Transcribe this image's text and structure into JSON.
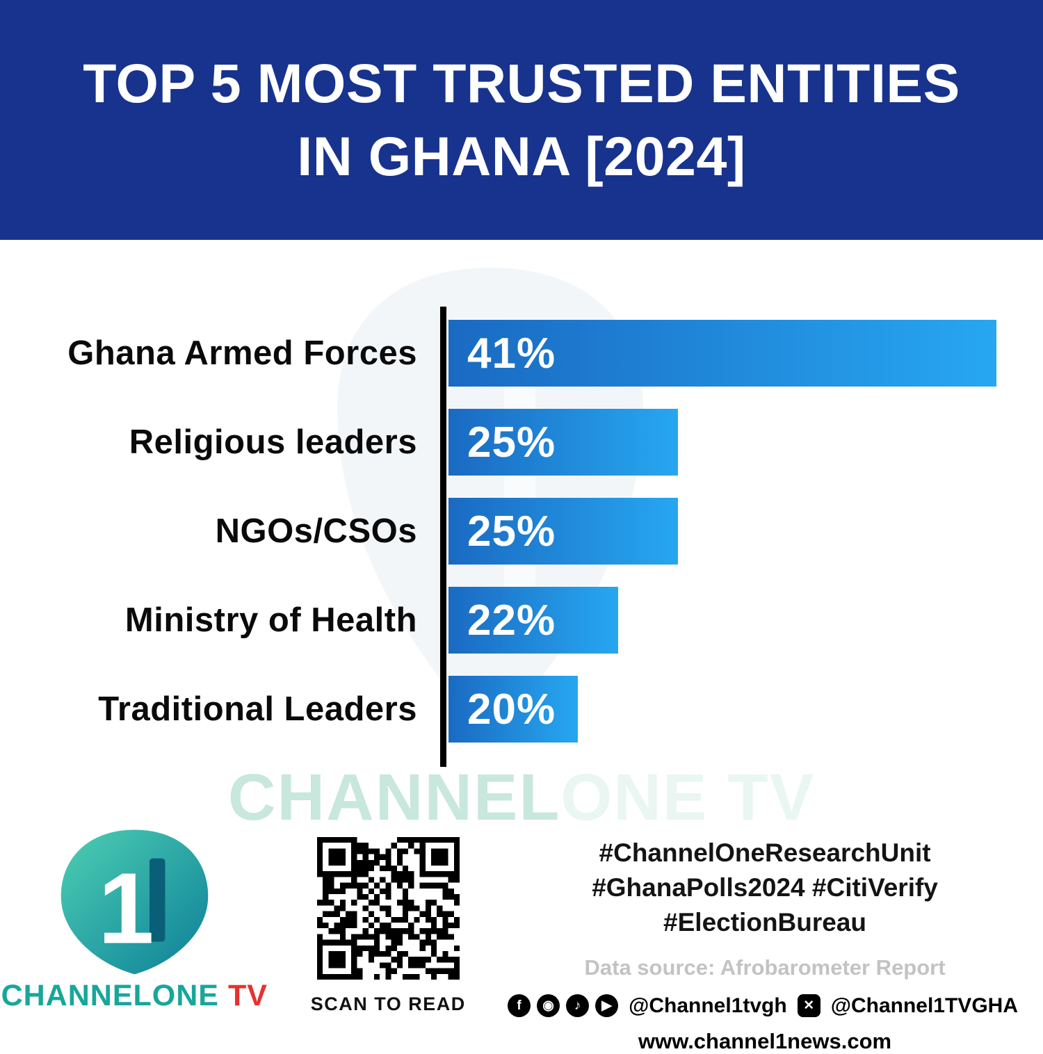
{
  "header": {
    "title_line1": "TOP 5 MOST TRUSTED ENTITIES",
    "title_line2": "IN GHANA [2024]"
  },
  "chart_data": {
    "type": "bar",
    "orientation": "horizontal",
    "title": "TOP 5 MOST TRUSTED ENTITIES IN GHANA [2024]",
    "categories": [
      "Ghana Armed Forces",
      "Religious leaders",
      "NGOs/CSOs",
      "Ministry of Health",
      "Traditional Leaders"
    ],
    "values": [
      41,
      25,
      25,
      22,
      20
    ],
    "value_labels": [
      "41%",
      "25%",
      "25%",
      "22%",
      "20%"
    ],
    "unit": "%",
    "xlim": [
      13.5,
      41.3
    ],
    "grid": false,
    "legend": false,
    "bar_color_start": "#1A6AC2",
    "bar_color_end": "#27A7F1",
    "axis_color": "#000000"
  },
  "watermark": {
    "part1": "CHANNEL",
    "part2": "ONE TV"
  },
  "footer": {
    "brand": {
      "name_primary": "CHANNELONE",
      "name_secondary": " TV",
      "logo_numeral": "1"
    },
    "qr_caption": "SCAN TO READ",
    "hashtags": {
      "line1": "#ChannelOneResearchUnit",
      "line2": "#GhanaPolls2024 #CitiVerify",
      "line3": "#ElectionBureau"
    },
    "data_source": "Data source: Afrobarometer Report",
    "social": {
      "icons_group1": [
        "facebook",
        "instagram",
        "tiktok",
        "youtube"
      ],
      "handle1": "@Channel1tvgh",
      "icons_group2": [
        "x"
      ],
      "handle2": "@Channel1TVGHA"
    },
    "website": "www.channel1news.com"
  },
  "colors": {
    "header_bg": "#17338D",
    "bar_gradient_start": "#1A6AC2",
    "bar_gradient_end": "#27A7F1",
    "brand_teal": "#16A79A",
    "brand_red": "#E8312F",
    "watermark_teal": "#C8E7DD",
    "source_gray": "#C3C3C3"
  }
}
